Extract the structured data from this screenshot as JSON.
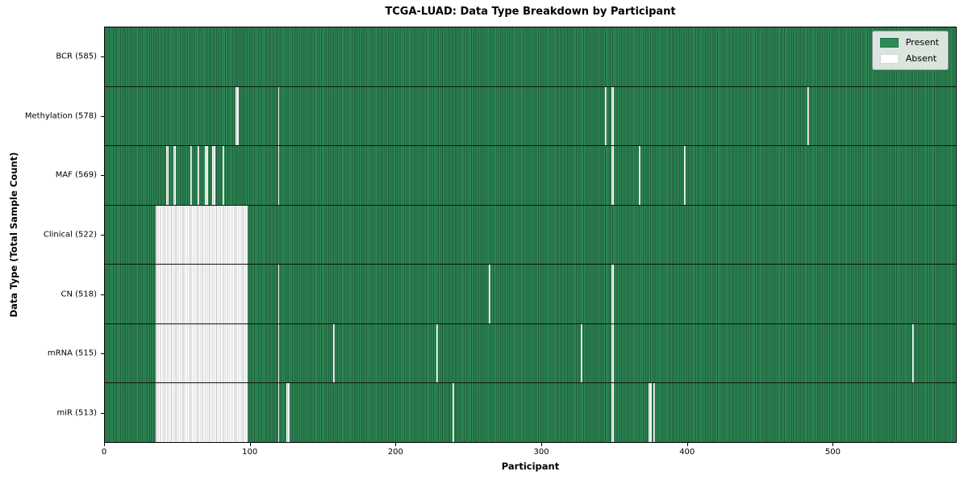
{
  "title": "TCGA-LUAD: Data Type Breakdown by Participant",
  "colors": {
    "present": "#2e8b57",
    "present_edge": "#1e5c39",
    "absent": "#ffffff",
    "absent_edge": "#c4c4c4",
    "row_divider": "#141414"
  },
  "chart_data": {
    "type": "heatmap",
    "title": "TCGA-LUAD: Data Type Breakdown by Participant",
    "xlabel": "Participant",
    "ylabel": "Data Type (Total Sample Count)",
    "x_range": [
      0,
      585
    ],
    "x_ticks": [
      0,
      100,
      200,
      300,
      400,
      500
    ],
    "grid": false,
    "legend_position": "upper right",
    "legend": [
      {
        "label": "Present",
        "color": "#2e8b57"
      },
      {
        "label": "Absent",
        "color": "#ffffff"
      }
    ],
    "rows": [
      {
        "data_type": "BCR",
        "total_samples": 585,
        "label": "BCR (585)",
        "absent_runs": []
      },
      {
        "data_type": "Methylation",
        "total_samples": 578,
        "label": "Methylation (578)",
        "absent_runs": [
          [
            90,
            91
          ],
          [
            119,
            119
          ],
          [
            344,
            344
          ],
          [
            348,
            349
          ],
          [
            483,
            483
          ]
        ]
      },
      {
        "data_type": "MAF",
        "total_samples": 569,
        "label": "MAF (569)",
        "absent_runs": [
          [
            42,
            43
          ],
          [
            47,
            48
          ],
          [
            59,
            59
          ],
          [
            64,
            64
          ],
          [
            69,
            70
          ],
          [
            74,
            75
          ],
          [
            81,
            81
          ],
          [
            119,
            119
          ],
          [
            348,
            349
          ],
          [
            367,
            367
          ],
          [
            398,
            398
          ]
        ]
      },
      {
        "data_type": "Clinical",
        "total_samples": 522,
        "label": "Clinical (522)",
        "absent_runs": [
          [
            35,
            97
          ]
        ]
      },
      {
        "data_type": "CN",
        "total_samples": 518,
        "label": "CN (518)",
        "absent_runs": [
          [
            35,
            97
          ],
          [
            119,
            119
          ],
          [
            264,
            264
          ],
          [
            348,
            349
          ]
        ]
      },
      {
        "data_type": "mRNA",
        "total_samples": 515,
        "label": "mRNA (515)",
        "absent_runs": [
          [
            35,
            97
          ],
          [
            119,
            119
          ],
          [
            157,
            157
          ],
          [
            228,
            228
          ],
          [
            327,
            327
          ],
          [
            348,
            349
          ],
          [
            555,
            555
          ]
        ]
      },
      {
        "data_type": "miR",
        "total_samples": 513,
        "label": "miR (513)",
        "absent_runs": [
          [
            35,
            97
          ],
          [
            119,
            119
          ],
          [
            125,
            126
          ],
          [
            239,
            239
          ],
          [
            348,
            349
          ],
          [
            374,
            375
          ],
          [
            377,
            377
          ]
        ]
      }
    ]
  }
}
